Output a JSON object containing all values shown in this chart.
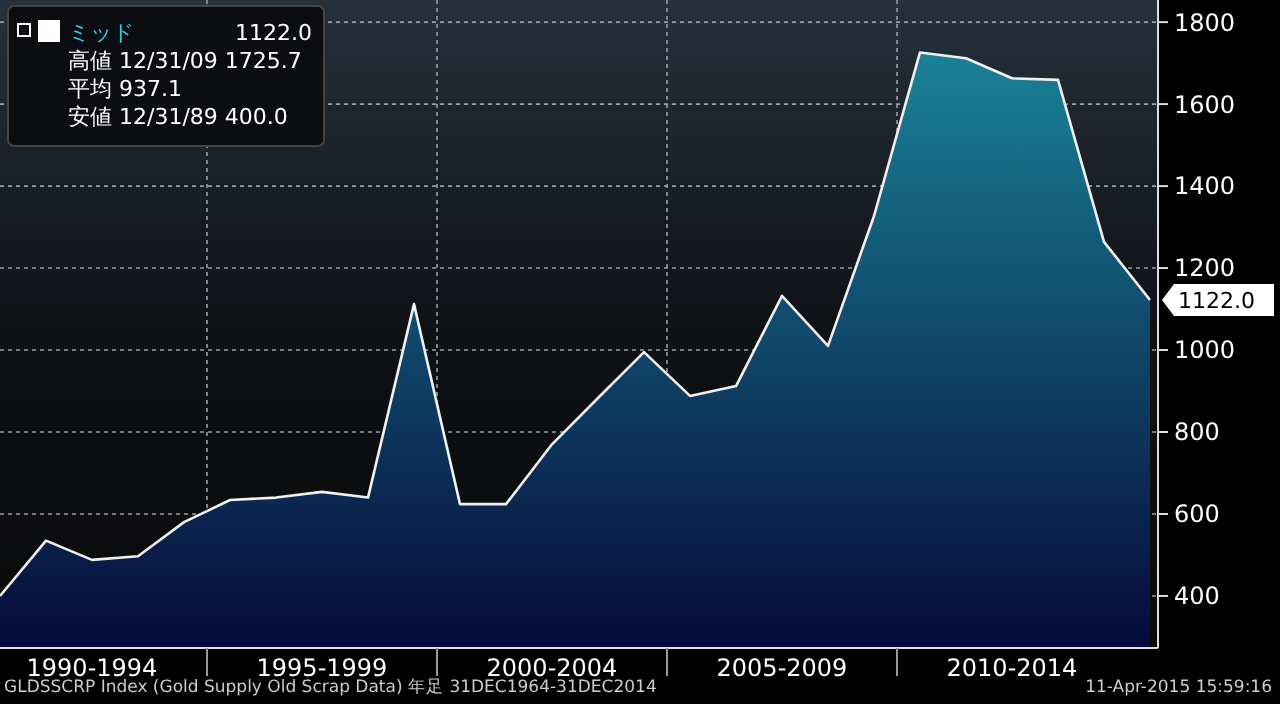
{
  "chart_data": {
    "type": "area",
    "categories": [
      null,
      null,
      "1990-1994",
      null,
      null,
      null,
      null,
      "1995-1999",
      null,
      null,
      null,
      null,
      "2000-2004",
      null,
      null,
      null,
      null,
      "2005-2009",
      null,
      null,
      null,
      null,
      "2010-2014",
      null,
      null,
      null
    ],
    "series": [
      {
        "name": "ミッド",
        "color": "#1a8196",
        "values": [
          400,
          535,
          488,
          497,
          580,
          634,
          640,
          654,
          640,
          1112,
          624,
          624,
          770,
          883,
          995,
          888,
          912,
          1132,
          1010,
          1327,
          1726,
          1712,
          1663,
          1659,
          1264,
          1122
        ]
      }
    ],
    "ylim": [
      273,
      1854
    ],
    "yticks": [
      400,
      600,
      800,
      1000,
      1200,
      1400,
      1600,
      1800
    ],
    "grid": true,
    "legend": "top left",
    "annotations": [
      "1122.0",
      "高値 12/31/09 1725.7",
      "平均 937.1",
      "安値 12/31/89 400.0",
      "1122.0",
      "GLDSSCRP Index (Gold Supply Old Scrap Data) 年足 31DEC1964-31DEC2014",
      "11-Apr-2015 15:59:16"
    ]
  }
}
